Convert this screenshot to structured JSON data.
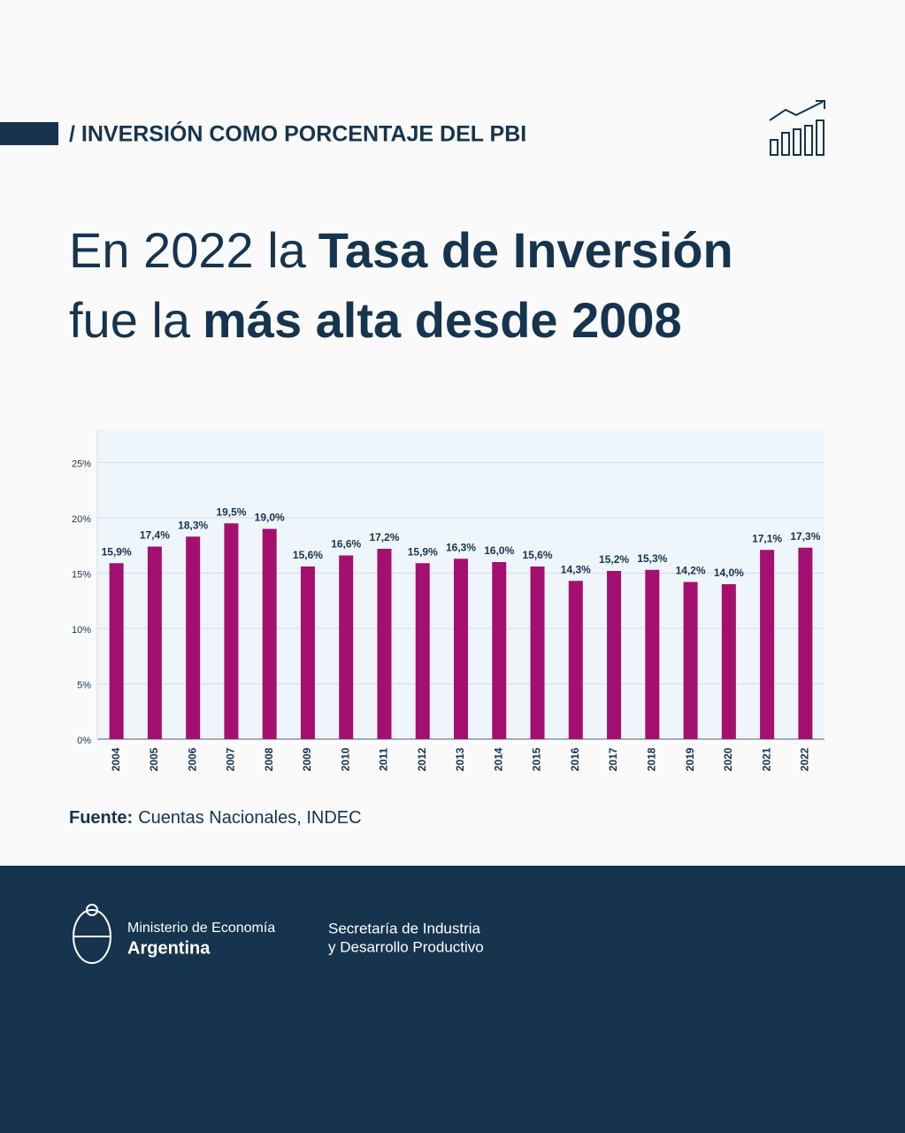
{
  "header": "/ INVERSIÓN COMO PORCENTAJE DEL PBI",
  "title": {
    "line1": [
      "En 2022 la",
      "Tasa de Inversión"
    ],
    "line2": [
      "fue la",
      "más alta desde 2008"
    ]
  },
  "chart_data": {
    "type": "bar",
    "categories": [
      "2004",
      "2005",
      "2006",
      "2007",
      "2008",
      "2009",
      "2010",
      "2011",
      "2012",
      "2013",
      "2014",
      "2015",
      "2016",
      "2017",
      "2018",
      "2019",
      "2020",
      "2021",
      "2022"
    ],
    "values": [
      15.9,
      17.4,
      18.3,
      19.5,
      19.0,
      15.6,
      16.6,
      17.2,
      15.9,
      16.3,
      16.0,
      15.6,
      14.3,
      15.2,
      15.3,
      14.2,
      14.0,
      17.1,
      17.3
    ],
    "value_labels": [
      "15,9%",
      "17,4%",
      "18,3%",
      "19,5%",
      "19,0%",
      "15,6%",
      "16,6%",
      "17,2%",
      "15,9%",
      "16,3%",
      "16,0%",
      "15,6%",
      "14,3%",
      "15,2%",
      "15,3%",
      "14,2%",
      "14,0%",
      "17,1%",
      "17,3%"
    ],
    "color": "#a3106f",
    "ylim": [
      0,
      28
    ],
    "yticks": [
      {
        "value": 0,
        "label": "0%"
      },
      {
        "value": 5,
        "label": "5%"
      },
      {
        "value": 10,
        "label": "10%"
      },
      {
        "value": 15,
        "label": "15%"
      },
      {
        "value": 20,
        "label": "20%"
      },
      {
        "value": 25,
        "label": "25%"
      }
    ],
    "grid": true
  },
  "source": {
    "label": "Fuente:",
    "text": "Cuentas Nacionales, INDEC"
  },
  "footer": {
    "ministry": "Ministerio de Economía",
    "country": "Argentina",
    "secretariat_line1": "Secretaría de Industria",
    "secretariat_line2": "y Desarrollo Productivo"
  }
}
